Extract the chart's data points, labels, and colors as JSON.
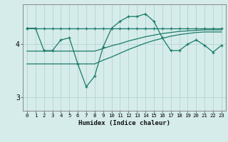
{
  "xlabel": "Humidex (Indice chaleur)",
  "bg_color": "#d5ecea",
  "grid_color": "#b8d8d5",
  "line_color": "#1a7a6a",
  "xlim": [
    -0.5,
    23.5
  ],
  "ylim": [
    2.75,
    4.75
  ],
  "yticks": [
    3,
    4
  ],
  "xticks": [
    0,
    1,
    2,
    3,
    4,
    5,
    6,
    7,
    8,
    9,
    10,
    11,
    12,
    13,
    14,
    15,
    16,
    17,
    18,
    19,
    20,
    21,
    22,
    23
  ],
  "line1_x": [
    0,
    1,
    2,
    3,
    4,
    5,
    6,
    7,
    8,
    9,
    10,
    11,
    12,
    13,
    14,
    15,
    16,
    17,
    18,
    19,
    20,
    21,
    22,
    23
  ],
  "line1_y": [
    4.3,
    4.3,
    4.3,
    4.3,
    4.3,
    4.3,
    4.3,
    4.3,
    4.3,
    4.3,
    4.3,
    4.3,
    4.3,
    4.3,
    4.3,
    4.3,
    4.3,
    4.3,
    4.3,
    4.3,
    4.3,
    4.3,
    4.3,
    4.3
  ],
  "line2_x": [
    0,
    2,
    3,
    4,
    5,
    6,
    7,
    8,
    9,
    10,
    11,
    12,
    13,
    14,
    15,
    16,
    17,
    18,
    19,
    20,
    21,
    22,
    23
  ],
  "line2_y": [
    3.63,
    3.63,
    3.63,
    3.63,
    3.63,
    3.63,
    3.63,
    3.63,
    3.7,
    3.76,
    3.83,
    3.9,
    3.96,
    4.02,
    4.07,
    4.11,
    4.15,
    4.18,
    4.2,
    4.22,
    4.23,
    4.23,
    4.23
  ],
  "line3_x": [
    0,
    2,
    3,
    4,
    5,
    6,
    7,
    8,
    9,
    10,
    11,
    12,
    13,
    14,
    15,
    16,
    17,
    18,
    19,
    20,
    21,
    22,
    23
  ],
  "line3_y": [
    3.87,
    3.87,
    3.87,
    3.87,
    3.87,
    3.87,
    3.87,
    3.87,
    3.92,
    3.97,
    4.01,
    4.06,
    4.1,
    4.14,
    4.17,
    4.2,
    4.22,
    4.24,
    4.25,
    4.26,
    4.27,
    4.27,
    4.27
  ],
  "line4_x": [
    0,
    1,
    2,
    3,
    4,
    5,
    6,
    7,
    8,
    9,
    10,
    11,
    12,
    13,
    14,
    15,
    16,
    17,
    18,
    19,
    20,
    21,
    22,
    23
  ],
  "line4_y": [
    4.3,
    4.3,
    3.88,
    3.88,
    4.08,
    4.12,
    3.63,
    3.2,
    3.4,
    3.95,
    4.3,
    4.43,
    4.52,
    4.52,
    4.57,
    4.43,
    4.12,
    3.88,
    3.88,
    4.0,
    4.08,
    3.98,
    3.85,
    3.98
  ]
}
